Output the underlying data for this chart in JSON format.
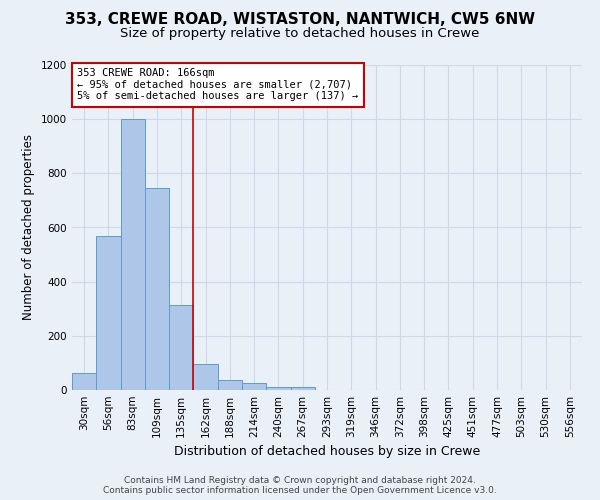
{
  "title1": "353, CREWE ROAD, WISTASTON, NANTWICH, CW5 6NW",
  "title2": "Size of property relative to detached houses in Crewe",
  "xlabel": "Distribution of detached houses by size in Crewe",
  "ylabel": "Number of detached properties",
  "footer1": "Contains HM Land Registry data © Crown copyright and database right 2024.",
  "footer2": "Contains public sector information licensed under the Open Government Licence v3.0.",
  "bin_labels": [
    "30sqm",
    "56sqm",
    "83sqm",
    "109sqm",
    "135sqm",
    "162sqm",
    "188sqm",
    "214sqm",
    "240sqm",
    "267sqm",
    "293sqm",
    "319sqm",
    "346sqm",
    "372sqm",
    "398sqm",
    "425sqm",
    "451sqm",
    "477sqm",
    "503sqm",
    "530sqm",
    "556sqm"
  ],
  "bar_values": [
    63,
    570,
    1000,
    745,
    315,
    95,
    38,
    25,
    12,
    12,
    0,
    0,
    0,
    0,
    0,
    0,
    0,
    0,
    0,
    0,
    0
  ],
  "bar_color": "#aec6e8",
  "bar_edge_color": "#5b9bd5",
  "property_line_x": 5.0,
  "annotation_text_line1": "353 CREWE ROAD: 166sqm",
  "annotation_text_line2": "← 95% of detached houses are smaller (2,707)",
  "annotation_text_line3": "5% of semi-detached houses are larger (137) →",
  "annotation_box_color": "#ffffff",
  "annotation_border_color": "#cc0000",
  "grid_color": "#d0d8e8",
  "bg_color": "#eaf0f8",
  "ylim": [
    0,
    1200
  ],
  "yticks": [
    0,
    200,
    400,
    600,
    800,
    1000,
    1200
  ],
  "title1_fontsize": 11,
  "title2_fontsize": 9.5,
  "ylabel_fontsize": 8.5,
  "xlabel_fontsize": 9,
  "tick_fontsize": 7.5,
  "footer_fontsize": 6.5,
  "annot_fontsize": 7.5
}
